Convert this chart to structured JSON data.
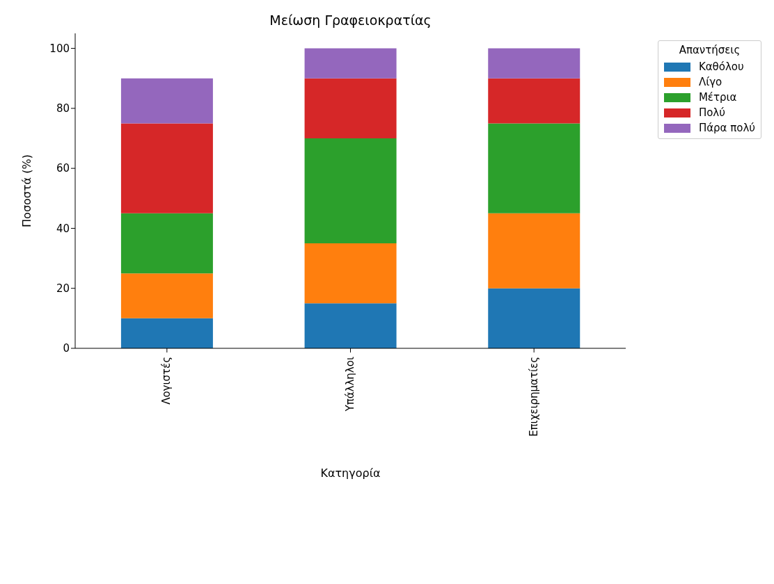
{
  "chart_data": {
    "type": "bar",
    "title": "Μείωση Γραφειοκρατίας",
    "xlabel": "Κατηγορία",
    "ylabel": "Ποσοστά (%)",
    "legend_title": "Απαντήσεις",
    "categories": [
      "Λογιστές",
      "Υπάλληλοι",
      "Επιχειρηματίες"
    ],
    "series": [
      {
        "name": "Καθόλου",
        "color": "#1f77b4",
        "values": [
          10,
          15,
          20
        ]
      },
      {
        "name": "Λίγο",
        "color": "#ff7f0e",
        "values": [
          15,
          20,
          25
        ]
      },
      {
        "name": "Μέτρια",
        "color": "#2ca02c",
        "values": [
          20,
          35,
          30
        ]
      },
      {
        "name": "Πολύ",
        "color": "#d62728",
        "values": [
          30,
          20,
          15
        ]
      },
      {
        "name": "Πάρα πολύ",
        "color": "#9467bd",
        "values": [
          15,
          10,
          10
        ]
      }
    ],
    "stacked": true,
    "ylim": [
      0,
      105
    ],
    "yticks": [
      0,
      20,
      40,
      60,
      80,
      100
    ],
    "grid": false,
    "legend": "top right"
  }
}
